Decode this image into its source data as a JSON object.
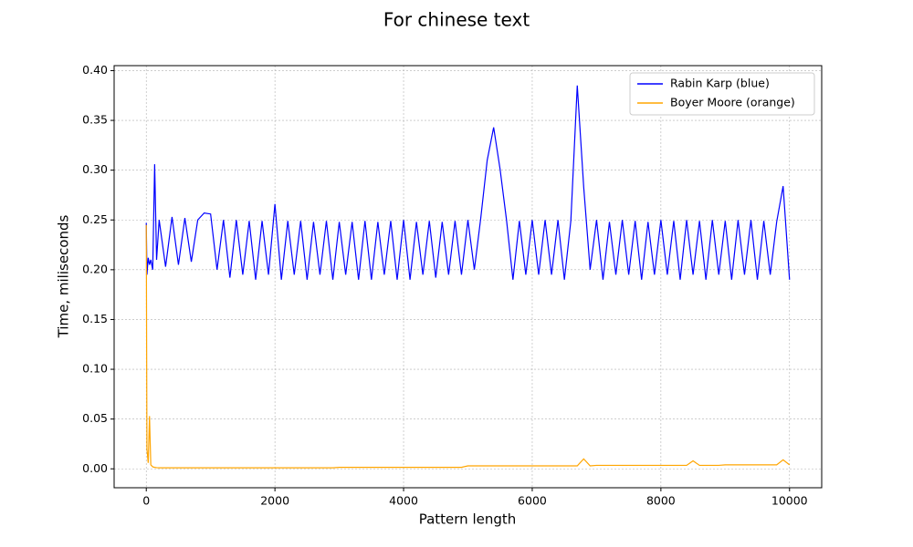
{
  "chart_data": {
    "type": "line",
    "title": "For chinese text",
    "x_label": "Pattern length",
    "y_label": "Time, miliseconds",
    "x": [
      0,
      10,
      30,
      50,
      70,
      100,
      130,
      160,
      200,
      300,
      400,
      500,
      600,
      700,
      800,
      900,
      1000,
      1100,
      1200,
      1300,
      1400,
      1500,
      1600,
      1700,
      1800,
      1900,
      2000,
      2100,
      2200,
      2300,
      2400,
      2500,
      2600,
      2700,
      2800,
      2900,
      3000,
      3100,
      3200,
      3300,
      3400,
      3500,
      3600,
      3700,
      3800,
      3900,
      4000,
      4100,
      4200,
      4300,
      4400,
      4500,
      4600,
      4700,
      4800,
      4900,
      5000,
      5100,
      5200,
      5300,
      5400,
      5500,
      5600,
      5700,
      5800,
      5900,
      6000,
      6100,
      6200,
      6300,
      6400,
      6500,
      6600,
      6700,
      6800,
      6900,
      7000,
      7100,
      7200,
      7300,
      7400,
      7500,
      7600,
      7700,
      7800,
      7900,
      8000,
      8100,
      8200,
      8300,
      8400,
      8500,
      8600,
      8700,
      8800,
      8900,
      9000,
      9100,
      9200,
      9300,
      9400,
      9500,
      9600,
      9700,
      9800,
      9900,
      10000
    ],
    "series": [
      {
        "name": "Rabin Karp (blue)",
        "color": "#0000ff",
        "values": [
          0.247,
          0.195,
          0.212,
          0.205,
          0.21,
          0.2,
          0.306,
          0.21,
          0.25,
          0.203,
          0.253,
          0.205,
          0.252,
          0.208,
          0.25,
          0.257,
          0.256,
          0.2,
          0.25,
          0.192,
          0.25,
          0.195,
          0.249,
          0.19,
          0.249,
          0.195,
          0.266,
          0.19,
          0.249,
          0.195,
          0.249,
          0.19,
          0.248,
          0.195,
          0.249,
          0.19,
          0.248,
          0.195,
          0.248,
          0.19,
          0.249,
          0.19,
          0.248,
          0.195,
          0.249,
          0.19,
          0.25,
          0.19,
          0.248,
          0.195,
          0.249,
          0.192,
          0.248,
          0.195,
          0.249,
          0.195,
          0.25,
          0.2,
          0.252,
          0.31,
          0.343,
          0.301,
          0.25,
          0.19,
          0.249,
          0.195,
          0.25,
          0.195,
          0.25,
          0.195,
          0.25,
          0.19,
          0.249,
          0.385,
          0.283,
          0.2,
          0.25,
          0.19,
          0.248,
          0.195,
          0.25,
          0.195,
          0.249,
          0.19,
          0.248,
          0.195,
          0.25,
          0.195,
          0.249,
          0.19,
          0.25,
          0.195,
          0.249,
          0.19,
          0.25,
          0.195,
          0.249,
          0.19,
          0.25,
          0.195,
          0.25,
          0.19,
          0.249,
          0.195,
          0.248,
          0.284,
          0.19
        ]
      },
      {
        "name": "Boyer Moore (orange)",
        "color": "#ffa500",
        "values": [
          0.245,
          0.02,
          0.006,
          0.053,
          0.004,
          0.002,
          0.0015,
          0.0012,
          0.001,
          0.001,
          0.001,
          0.001,
          0.001,
          0.001,
          0.001,
          0.001,
          0.001,
          0.001,
          0.001,
          0.001,
          0.001,
          0.001,
          0.001,
          0.001,
          0.001,
          0.001,
          0.001,
          0.001,
          0.001,
          0.001,
          0.001,
          0.001,
          0.001,
          0.001,
          0.001,
          0.001,
          0.0015,
          0.0015,
          0.0015,
          0.0015,
          0.0015,
          0.0015,
          0.0015,
          0.0015,
          0.0015,
          0.0015,
          0.0015,
          0.0015,
          0.0015,
          0.0015,
          0.0015,
          0.0015,
          0.0015,
          0.0015,
          0.0015,
          0.0015,
          0.003,
          0.003,
          0.003,
          0.003,
          0.003,
          0.003,
          0.003,
          0.003,
          0.003,
          0.003,
          0.003,
          0.003,
          0.003,
          0.003,
          0.003,
          0.003,
          0.003,
          0.003,
          0.01,
          0.003,
          0.0035,
          0.0035,
          0.0035,
          0.0035,
          0.0035,
          0.0035,
          0.0035,
          0.0035,
          0.0035,
          0.0035,
          0.0035,
          0.0035,
          0.0035,
          0.0035,
          0.0035,
          0.008,
          0.0035,
          0.0035,
          0.0035,
          0.0035,
          0.004,
          0.004,
          0.004,
          0.004,
          0.004,
          0.004,
          0.004,
          0.004,
          0.004,
          0.009,
          0.004
        ]
      }
    ],
    "xlim": [
      -500,
      10500
    ],
    "ylim": [
      -0.019,
      0.405
    ],
    "xticks": [
      0,
      2000,
      4000,
      6000,
      8000,
      10000
    ],
    "yticks": [
      {
        "value": 0,
        "label": "0.00"
      },
      0.05,
      {
        "value": 0.1,
        "label": "0.10"
      },
      0.15,
      {
        "value": 0.2,
        "label": "0.20"
      },
      0.25,
      {
        "value": 0.3,
        "label": "0.30"
      },
      0.35,
      {
        "value": 0.4,
        "label": "0.40"
      }
    ],
    "grid": true,
    "legend": "upper right"
  }
}
